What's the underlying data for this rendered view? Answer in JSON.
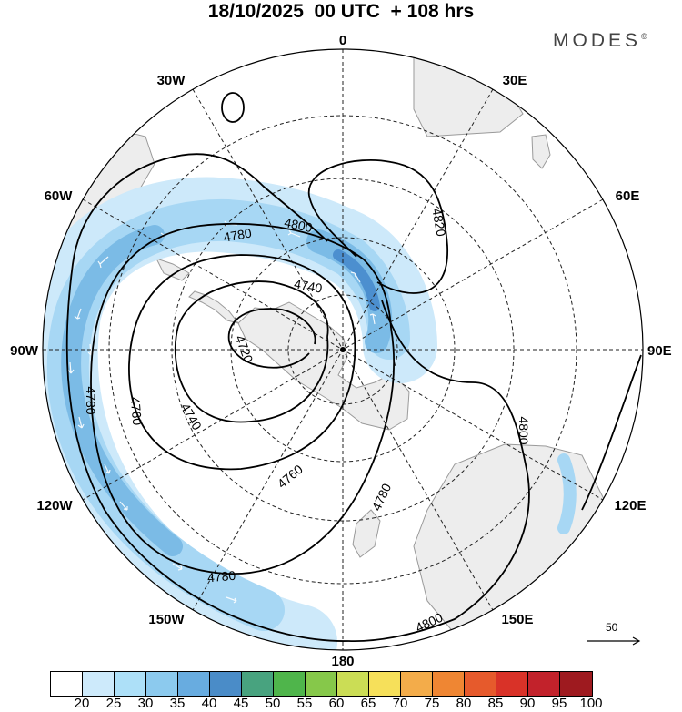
{
  "header": {
    "title": "18/10/2025  00 UTC  + 108 hrs",
    "brand": "MODES",
    "brand_mark": "©"
  },
  "map": {
    "projection": "south polar stereographic",
    "longitude_labels": {
      "top": "0",
      "top_right": "30E",
      "upper_right": "60E",
      "right": "90E",
      "lower_right": "120E",
      "bottom_right": "150E",
      "bottom": "180",
      "bottom_left": "150W",
      "lower_left": "120W",
      "left": "90W",
      "upper_left": "60W",
      "top_left": "30W"
    },
    "contour_labels": [
      "4780",
      "4800",
      "4740",
      "4820",
      "4720",
      "4780",
      "4760",
      "4740",
      "4760",
      "4800",
      "4780",
      "4780",
      "4800"
    ],
    "colors": {
      "land": "#ededed",
      "coast": "#9a9a9a",
      "wind_light": "#cde9fa",
      "wind_mid": "#a7d7f4",
      "wind_strong": "#7bbbe6",
      "wind_core": "#4c8fcf"
    }
  },
  "legend": {
    "reference_vector": "50",
    "levels": [
      "20",
      "25",
      "30",
      "35",
      "40",
      "45",
      "50",
      "55",
      "60",
      "65",
      "70",
      "75",
      "80",
      "85",
      "90",
      "95",
      "100"
    ],
    "colors": [
      "#ffffff",
      "#cdeafb",
      "#ade0f8",
      "#8ccaee",
      "#68ace0",
      "#4a8cc8",
      "#48a37f",
      "#4fb54b",
      "#86c84a",
      "#cbdd55",
      "#f6e05a",
      "#f3ac4a",
      "#ef8633",
      "#e65a2c",
      "#d93228",
      "#c2222b",
      "#9e1a1f"
    ]
  }
}
